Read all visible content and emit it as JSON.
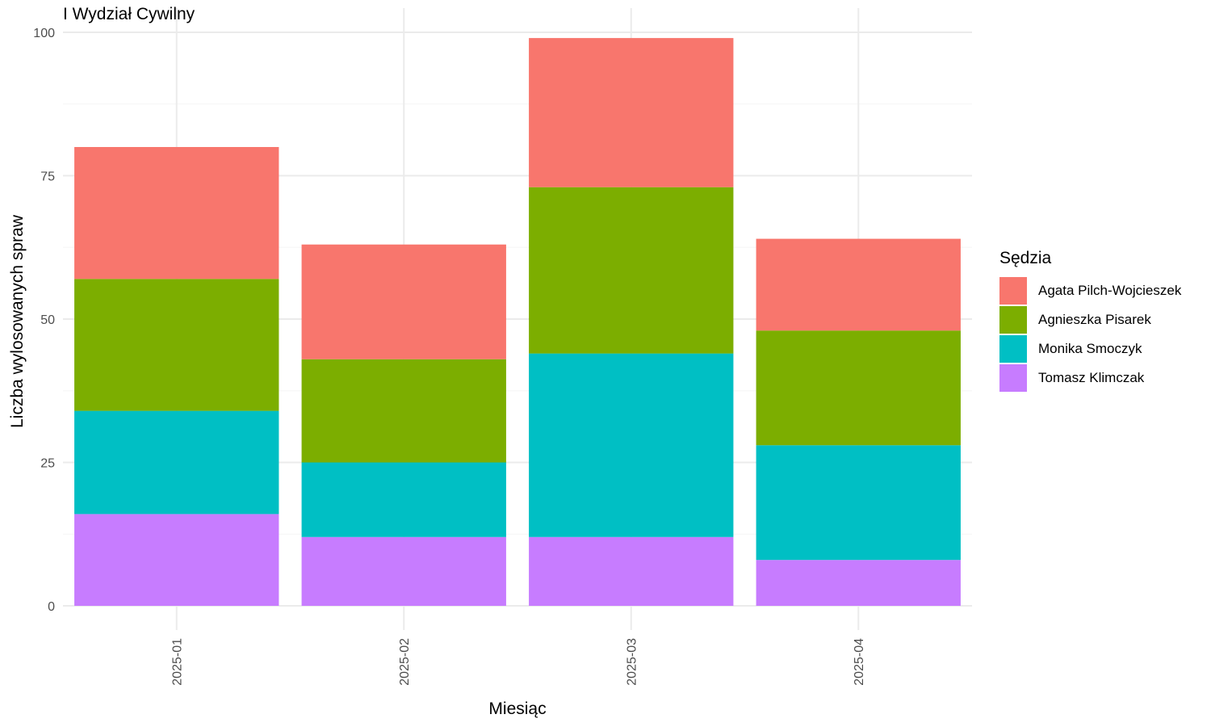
{
  "chart_data": {
    "type": "bar",
    "stacked": true,
    "title": "I Wydział Cywilny",
    "xlabel": "Miesiąc",
    "ylabel": "Liczba wylosowanych spraw",
    "ylim": [
      0,
      100
    ],
    "yticks": [
      0,
      25,
      50,
      75,
      100
    ],
    "categories": [
      "2025-01",
      "2025-02",
      "2025-03",
      "2025-04"
    ],
    "legend_title": "Sędzia",
    "legend_position": "right",
    "grid": true,
    "series": [
      {
        "name": "Agata Pilch-Wojcieszek",
        "color": "#F8766D",
        "values": [
          23,
          20,
          26,
          16
        ]
      },
      {
        "name": "Agnieszka Pisarek",
        "color": "#7CAE00",
        "values": [
          23,
          18,
          29,
          20
        ]
      },
      {
        "name": "Monika Smoczyk",
        "color": "#00BFC4",
        "values": [
          18,
          13,
          32,
          20
        ]
      },
      {
        "name": "Tomasz Klimczak",
        "color": "#C77CFF",
        "values": [
          16,
          12,
          12,
          8
        ]
      }
    ]
  }
}
